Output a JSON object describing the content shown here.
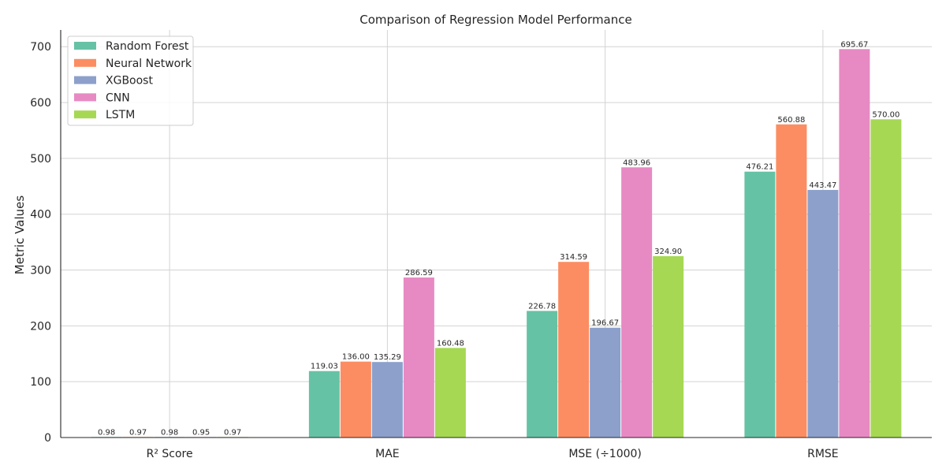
{
  "chart_data": {
    "type": "bar",
    "title": "Comparison of Regression Model Performance",
    "xlabel": "",
    "ylabel": "Metric Values",
    "categories": [
      "R² Score",
      "MAE",
      "MSE (÷1000)",
      "RMSE"
    ],
    "ylim": [
      0,
      730
    ],
    "yticks": [
      0,
      100,
      200,
      300,
      400,
      500,
      600,
      700
    ],
    "grid": true,
    "legend_position": "top-left",
    "series": [
      {
        "name": "Random Forest",
        "color": "#66c2a5",
        "values": [
          0.98,
          119.03,
          226.78,
          476.21
        ],
        "labels": [
          "0.98",
          "119.03",
          "226.78",
          "476.21"
        ]
      },
      {
        "name": "Neural Network",
        "color": "#fc8d62",
        "values": [
          0.97,
          136.0,
          314.59,
          560.88
        ],
        "labels": [
          "0.97",
          "136.00",
          "314.59",
          "560.88"
        ]
      },
      {
        "name": "XGBoost",
        "color": "#8da0cb",
        "values": [
          0.98,
          135.29,
          196.67,
          443.47
        ],
        "labels": [
          "0.98",
          "135.29",
          "196.67",
          "443.47"
        ]
      },
      {
        "name": "CNN",
        "color": "#e78ac3",
        "values": [
          0.95,
          286.59,
          483.96,
          695.67
        ],
        "labels": [
          "0.95",
          "286.59",
          "483.96",
          "695.67"
        ]
      },
      {
        "name": "LSTM",
        "color": "#a6d854",
        "values": [
          0.97,
          160.48,
          324.9,
          570.0
        ],
        "labels": [
          "0.97",
          "160.48",
          "324.90",
          "570.00"
        ]
      }
    ]
  }
}
